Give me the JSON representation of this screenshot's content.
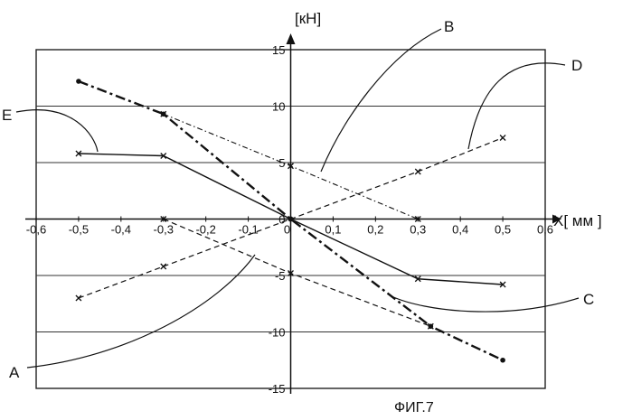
{
  "chart_data": {
    "type": "line",
    "xlabel": "X[ мм ]",
    "ylabel": "[кН]",
    "caption": "ФИГ.7",
    "xlim": [
      -0.6,
      0.6
    ],
    "ylim": [
      -15,
      15
    ],
    "grid": "horizontal",
    "x_ticks": [
      "-0,6",
      "-0,5",
      "-0,4",
      "-0,3",
      "-0,2",
      "-0,1",
      "0",
      "0,1",
      "0,2",
      "0,3",
      "0,4",
      "0,5",
      "0,6"
    ],
    "y_ticks": [
      "15",
      "10",
      "5",
      "0",
      "-5",
      "-10",
      "-15"
    ],
    "series": [
      {
        "name": "A",
        "style": "dashed",
        "x": [
          -0.3,
          0,
          0.33
        ],
        "y": [
          0,
          -4.8,
          -9.5
        ]
      },
      {
        "name": "B",
        "style": "dash-dot",
        "x": [
          -0.3,
          0,
          0.3
        ],
        "y": [
          9.3,
          4.7,
          0
        ]
      },
      {
        "name": "C",
        "style": "solid",
        "x": [
          -0.5,
          -0.3,
          0,
          0.3,
          0.5
        ],
        "y": [
          5.8,
          5.6,
          0,
          -5.3,
          -5.8
        ]
      },
      {
        "name": "D",
        "style": "dashed",
        "x": [
          -0.5,
          -0.3,
          0,
          0.3,
          0.5
        ],
        "y": [
          -7,
          -4.2,
          0,
          4.2,
          7.2
        ]
      },
      {
        "name": "E",
        "style": "dash-dot-thick",
        "x": [
          -0.5,
          -0.3,
          0,
          0.33,
          0.5
        ],
        "y": [
          12.2,
          9.3,
          0,
          -9.5,
          -12.5
        ]
      }
    ]
  }
}
